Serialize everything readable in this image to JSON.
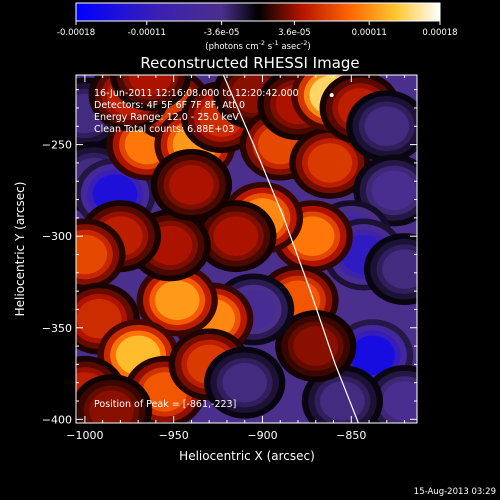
{
  "chart_data": {
    "type": "heatmap",
    "title": "Reconstructed RHESSI Image",
    "xlabel": "Heliocentric X (arcsec)",
    "ylabel": "Heliocentric Y (arcsec)",
    "xlim": [
      -1005,
      -813
    ],
    "ylim": [
      -402,
      -212
    ],
    "x_ticks": [
      -1000,
      -950,
      -900,
      -850
    ],
    "y_ticks": [
      -250,
      -300,
      -350,
      -400
    ],
    "colorbar": {
      "range": [
        -0.00018,
        0.00018
      ],
      "ticks": [
        "-0.00018",
        "-0.00011",
        "-3.6e-05",
        "3.6e-05",
        "0.00011",
        "0.00018"
      ],
      "tick_values": [
        -0.00018,
        -0.00011,
        -3.6e-05,
        3.6e-05,
        0.00011,
        0.00018
      ],
      "label_main": "(photons cm",
      "label_sup1": "-2",
      "label_mid": " s",
      "label_sup2": "-1",
      "label_end": " asec",
      "label_sup3": "-2",
      "label_close": ")",
      "colors": [
        "#0000ff",
        "#3a1fb4",
        "#4a2f8c",
        "#000000",
        "#b41400",
        "#ff6400",
        "#ffc832",
        "#ffffff"
      ]
    },
    "annotations": {
      "time": "16-Jun-2011 12:16:08.000 to 12:20:42.000",
      "detectors": "Detectors: 4F 5F 6F 7F 8F, Att 0",
      "energy": "Energy Range: 12.0 - 25.0 keV",
      "clean": "Clean     Total counts: 6.88E+03",
      "peak": "Position of Peak = [-861,-223]"
    },
    "peak": [
      -861,
      -223
    ],
    "limb": [
      [
        -922,
        -212
      ],
      [
        -905,
        -250
      ],
      [
        -888,
        -290
      ],
      [
        -873,
        -330
      ],
      [
        -859,
        -370
      ],
      [
        -846,
        -402
      ]
    ],
    "blobs": [
      {
        "x": -1000,
        "y": -233,
        "v": -4e-05
      },
      {
        "x": -995,
        "y": -268,
        "v": -4e-05
      },
      {
        "x": -983,
        "y": -277,
        "v": -0.00017
      },
      {
        "x": -965,
        "y": -250,
        "v": 0.00012
      },
      {
        "x": -952,
        "y": -228,
        "v": 8e-05
      },
      {
        "x": -975,
        "y": -223,
        "v": 6e-05
      },
      {
        "x": -938,
        "y": -250,
        "v": 0.00014
      },
      {
        "x": -923,
        "y": -235,
        "v": 7e-05
      },
      {
        "x": -905,
        "y": -222,
        "v": 4e-05
      },
      {
        "x": -890,
        "y": -250,
        "v": 9e-05
      },
      {
        "x": -880,
        "y": -228,
        "v": 5e-05
      },
      {
        "x": -862,
        "y": -260,
        "v": 8e-05
      },
      {
        "x": -861,
        "y": -223,
        "v": 0.00018
      },
      {
        "x": -845,
        "y": -230,
        "v": 6e-05
      },
      {
        "x": -830,
        "y": -240,
        "v": -4e-05
      },
      {
        "x": -826,
        "y": -275,
        "v": -5e-05
      },
      {
        "x": -850,
        "y": -300,
        "v": -0.0001
      },
      {
        "x": -843,
        "y": -310,
        "v": -0.00014
      },
      {
        "x": -820,
        "y": -318,
        "v": -4e-05
      },
      {
        "x": -838,
        "y": -365,
        "v": -0.00018
      },
      {
        "x": -820,
        "y": -390,
        "v": -5e-05
      },
      {
        "x": -855,
        "y": -390,
        "v": -4e-05
      },
      {
        "x": -872,
        "y": -300,
        "v": 0.00012
      },
      {
        "x": -880,
        "y": -335,
        "v": 0.0001
      },
      {
        "x": -870,
        "y": -360,
        "v": 4e-05
      },
      {
        "x": -900,
        "y": -290,
        "v": 0.00013
      },
      {
        "x": -915,
        "y": -300,
        "v": 5e-05
      },
      {
        "x": -905,
        "y": -340,
        "v": -6e-05
      },
      {
        "x": -928,
        "y": -345,
        "v": 0.00013
      },
      {
        "x": -948,
        "y": -335,
        "v": 0.00014
      },
      {
        "x": -952,
        "y": -305,
        "v": 5e-05
      },
      {
        "x": -940,
        "y": -272,
        "v": 5e-05
      },
      {
        "x": -980,
        "y": -300,
        "v": 6e-05
      },
      {
        "x": -1000,
        "y": -310,
        "v": 9e-05
      },
      {
        "x": -992,
        "y": -345,
        "v": 7e-05
      },
      {
        "x": -970,
        "y": -365,
        "v": 0.00016
      },
      {
        "x": -955,
        "y": -385,
        "v": 0.0001
      },
      {
        "x": -930,
        "y": -370,
        "v": 8e-05
      },
      {
        "x": -910,
        "y": -380,
        "v": -4e-05
      },
      {
        "x": -1000,
        "y": -385,
        "v": 6e-05
      },
      {
        "x": -985,
        "y": -395,
        "v": 4e-05
      },
      {
        "x": -963,
        "y": -212,
        "v": 5e-05
      }
    ]
  },
  "footer": {
    "timestamp": "15-Aug-2013 03:29"
  }
}
